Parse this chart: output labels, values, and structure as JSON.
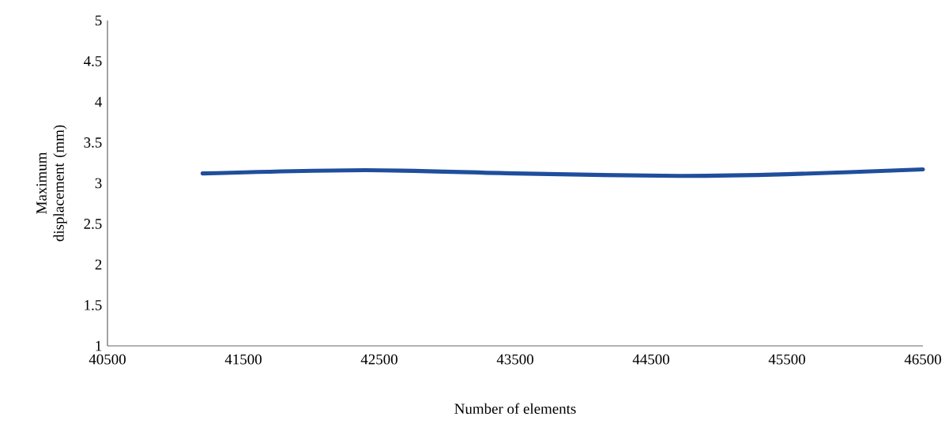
{
  "chart_data": {
    "type": "line",
    "xlabel": "Number of elements",
    "ylabel": "Maximum displacement (mm)",
    "x": [
      41200,
      42400,
      43500,
      44700,
      45500,
      46500
    ],
    "series": [
      {
        "color": "#1f4e9c",
        "values": [
          3.12,
          3.16,
          3.12,
          3.09,
          3.11,
          3.17
        ]
      }
    ],
    "xlim": [
      40500,
      46500
    ],
    "xticks": [
      40500,
      41500,
      42500,
      43500,
      44500,
      45500,
      46500
    ],
    "ylim": [
      1,
      5
    ],
    "yticks": [
      1,
      1.5,
      2,
      2.5,
      3,
      3.5,
      4,
      4.5,
      5
    ],
    "grid": false,
    "marker": "none",
    "line_style": "solid"
  }
}
